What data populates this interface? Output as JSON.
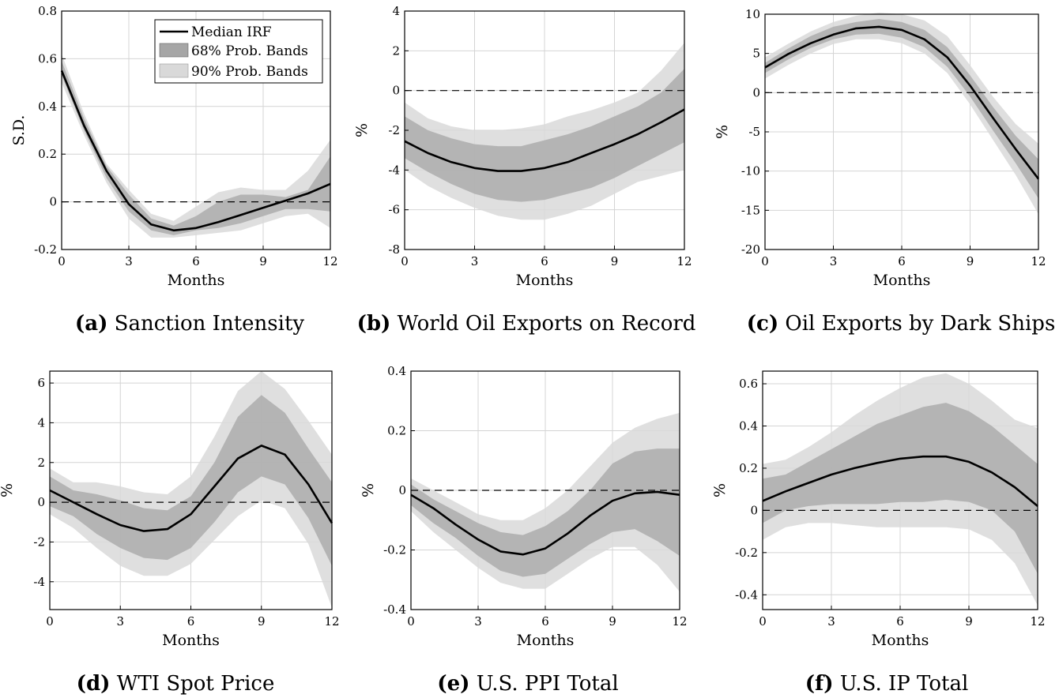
{
  "legend": {
    "median": "Median IRF",
    "band68": "68% Prob. Bands",
    "band90": "90% Prob. Bands"
  },
  "colors": {
    "median": "#000000",
    "band68": "#a6a6a6",
    "band90": "#d9d9d9",
    "grid": "#d4d4d4",
    "zero_line": "#000000"
  },
  "chart_data": [
    {
      "type": "line",
      "caption_letter": "(a)",
      "caption_title": "Sanction Intensity",
      "xlabel": "Months",
      "ylabel": "S.D.",
      "xlim": [
        0,
        12
      ],
      "ylim": [
        -0.2,
        0.8
      ],
      "xticks": [
        0,
        3,
        6,
        9,
        12
      ],
      "xtick_labels": [
        "0",
        "3",
        "6",
        "9",
        "12"
      ],
      "yticks": [
        -0.2,
        0,
        0.2,
        0.4,
        0.6,
        0.8
      ],
      "ytick_labels": [
        "-0.2",
        "0",
        "0.2",
        "0.4",
        "0.6",
        "0.8"
      ],
      "grid": true,
      "legend_position": "top-right",
      "x": [
        0,
        1,
        2,
        3,
        4,
        5,
        6,
        7,
        8,
        9,
        10,
        11,
        12
      ],
      "series": [
        {
          "name": "90% Prob. Bands",
          "lower": [
            0.5,
            0.28,
            0.08,
            -0.07,
            -0.15,
            -0.15,
            -0.14,
            -0.13,
            -0.12,
            -0.09,
            -0.06,
            -0.05,
            -0.11
          ],
          "upper": [
            0.62,
            0.37,
            0.16,
            0.05,
            -0.05,
            -0.08,
            -0.02,
            0.04,
            0.06,
            0.05,
            0.05,
            0.13,
            0.26
          ]
        },
        {
          "name": "68% Prob. Bands",
          "lower": [
            0.53,
            0.3,
            0.1,
            -0.04,
            -0.12,
            -0.14,
            -0.12,
            -0.11,
            -0.09,
            -0.06,
            -0.03,
            -0.03,
            -0.04
          ],
          "upper": [
            0.59,
            0.35,
            0.15,
            0.03,
            -0.07,
            -0.1,
            -0.06,
            0.0,
            0.03,
            0.03,
            0.02,
            0.05,
            0.19
          ]
        },
        {
          "name": "Median IRF",
          "values": [
            0.55,
            0.32,
            0.13,
            -0.01,
            -0.095,
            -0.12,
            -0.11,
            -0.085,
            -0.055,
            -0.025,
            0.005,
            0.035,
            0.075
          ]
        }
      ]
    },
    {
      "type": "line",
      "caption_letter": "(b)",
      "caption_title": "World Oil Exports on Record",
      "xlabel": "Months",
      "ylabel": "%",
      "xlim": [
        0,
        12
      ],
      "ylim": [
        -8,
        4
      ],
      "xticks": [
        0,
        3,
        6,
        9,
        12
      ],
      "xtick_labels": [
        "0",
        "3",
        "6",
        "9",
        "12"
      ],
      "yticks": [
        -8,
        -6,
        -4,
        -2,
        0,
        2,
        4
      ],
      "ytick_labels": [
        "-8",
        "-6",
        "-4",
        "-2",
        "0",
        "2",
        "4"
      ],
      "grid": true,
      "x": [
        0,
        1,
        2,
        3,
        4,
        5,
        6,
        7,
        8,
        9,
        10,
        11,
        12
      ],
      "series": [
        {
          "name": "90% Prob. Bands",
          "lower": [
            -4.0,
            -4.8,
            -5.4,
            -5.9,
            -6.3,
            -6.5,
            -6.5,
            -6.2,
            -5.8,
            -5.2,
            -4.6,
            -4.3,
            -4.0
          ],
          "upper": [
            -0.6,
            -1.4,
            -1.8,
            -2.0,
            -2.0,
            -1.9,
            -1.7,
            -1.3,
            -1.0,
            -0.6,
            -0.1,
            1.0,
            2.4
          ]
        },
        {
          "name": "68% Prob. Bands",
          "lower": [
            -3.4,
            -4.1,
            -4.7,
            -5.2,
            -5.5,
            -5.6,
            -5.5,
            -5.2,
            -4.9,
            -4.4,
            -3.8,
            -3.2,
            -2.6
          ],
          "upper": [
            -1.3,
            -2.0,
            -2.4,
            -2.7,
            -2.8,
            -2.8,
            -2.5,
            -2.2,
            -1.8,
            -1.3,
            -0.8,
            -0.1,
            1.1
          ]
        },
        {
          "name": "Median IRF",
          "values": [
            -2.55,
            -3.15,
            -3.6,
            -3.9,
            -4.05,
            -4.05,
            -3.9,
            -3.6,
            -3.15,
            -2.7,
            -2.2,
            -1.6,
            -0.95
          ]
        }
      ]
    },
    {
      "type": "line",
      "caption_letter": "(c)",
      "caption_title": "Oil Exports by Dark Ships",
      "xlabel": "Months",
      "ylabel": "%",
      "xlim": [
        0,
        12
      ],
      "ylim": [
        -20,
        10
      ],
      "xticks": [
        0,
        3,
        6,
        9,
        12
      ],
      "xtick_labels": [
        "0",
        "3",
        "6",
        "9",
        "12"
      ],
      "yticks": [
        -20,
        -15,
        -10,
        -5,
        0,
        5,
        10
      ],
      "ytick_labels": [
        "-20",
        "-15",
        "-10",
        "-5",
        "0",
        "5",
        "10"
      ],
      "grid": true,
      "x": [
        0,
        1,
        2,
        3,
        4,
        5,
        6,
        7,
        8,
        9,
        10,
        11,
        12
      ],
      "series": [
        {
          "name": "90% Prob. Bands",
          "lower": [
            1.8,
            3.5,
            5.0,
            6.2,
            6.8,
            6.8,
            6.3,
            5.0,
            2.5,
            -1.5,
            -6.0,
            -10.5,
            -15.5
          ],
          "upper": [
            4.5,
            6.2,
            7.8,
            9.0,
            9.8,
            10.2,
            10.0,
            9.2,
            7.2,
            3.5,
            -0.5,
            -4.0,
            -6.5
          ]
        },
        {
          "name": "68% Prob. Bands",
          "lower": [
            2.5,
            4.2,
            5.7,
            6.8,
            7.4,
            7.5,
            7.0,
            5.8,
            3.3,
            -0.5,
            -4.8,
            -9.0,
            -13.5
          ],
          "upper": [
            3.8,
            5.6,
            7.2,
            8.4,
            9.0,
            9.4,
            9.0,
            8.0,
            5.8,
            2.2,
            -1.8,
            -5.5,
            -8.5
          ]
        },
        {
          "name": "Median IRF",
          "values": [
            3.2,
            4.9,
            6.3,
            7.4,
            8.2,
            8.4,
            8.0,
            6.8,
            4.5,
            0.9,
            -3.2,
            -7.2,
            -11.0
          ]
        }
      ]
    },
    {
      "type": "line",
      "caption_letter": "(d)",
      "caption_title": "WTI Spot Price",
      "xlabel": "Months",
      "ylabel": "%",
      "xlim": [
        0,
        12
      ],
      "ylim": [
        -5.4,
        6.6
      ],
      "xticks": [
        0,
        3,
        6,
        9,
        12
      ],
      "xtick_labels": [
        "0",
        "3",
        "6",
        "9",
        "12"
      ],
      "yticks": [
        -4,
        -2,
        0,
        2,
        4,
        6
      ],
      "ytick_labels": [
        "-4",
        "-2",
        "0",
        "2",
        "4",
        "6"
      ],
      "grid": true,
      "x": [
        0,
        1,
        2,
        3,
        4,
        5,
        6,
        7,
        8,
        9,
        10,
        11,
        12
      ],
      "series": [
        {
          "name": "90% Prob. Bands",
          "lower": [
            -0.6,
            -1.3,
            -2.3,
            -3.2,
            -3.7,
            -3.7,
            -3.1,
            -1.9,
            -0.7,
            0.1,
            -0.3,
            -2.1,
            -5.3
          ],
          "upper": [
            1.7,
            1.0,
            1.0,
            0.8,
            0.5,
            0.4,
            1.3,
            3.3,
            5.6,
            6.6,
            5.7,
            4.1,
            2.4
          ]
        },
        {
          "name": "68% Prob. Bands",
          "lower": [
            -0.2,
            -0.7,
            -1.6,
            -2.3,
            -2.8,
            -2.9,
            -2.3,
            -1.0,
            0.5,
            1.3,
            0.9,
            -0.8,
            -3.2
          ],
          "upper": [
            1.3,
            0.6,
            0.4,
            0.1,
            -0.3,
            -0.4,
            0.3,
            2.0,
            4.3,
            5.4,
            4.5,
            2.7,
            1.0
          ]
        },
        {
          "name": "Median IRF",
          "values": [
            0.6,
            0.0,
            -0.6,
            -1.15,
            -1.45,
            -1.35,
            -0.6,
            0.8,
            2.2,
            2.85,
            2.4,
            0.9,
            -1.05
          ]
        }
      ]
    },
    {
      "type": "line",
      "caption_letter": "(e)",
      "caption_title": "U.S. PPI Total",
      "xlabel": "Months",
      "ylabel": "%",
      "xlim": [
        0,
        12
      ],
      "ylim": [
        -0.4,
        0.4
      ],
      "xticks": [
        0,
        3,
        6,
        9,
        12
      ],
      "xtick_labels": [
        "0",
        "3",
        "6",
        "9",
        "12"
      ],
      "yticks": [
        -0.4,
        -0.2,
        0,
        0.2,
        0.4
      ],
      "ytick_labels": [
        "-0.4",
        "-0.2",
        "0",
        "0.2",
        "0.4"
      ],
      "grid": true,
      "x": [
        0,
        1,
        2,
        3,
        4,
        5,
        6,
        7,
        8,
        9,
        10,
        11,
        12
      ],
      "series": [
        {
          "name": "90% Prob. Bands",
          "lower": [
            -0.07,
            -0.14,
            -0.2,
            -0.26,
            -0.31,
            -0.33,
            -0.33,
            -0.28,
            -0.23,
            -0.19,
            -0.19,
            -0.25,
            -0.34
          ],
          "upper": [
            0.04,
            0.0,
            -0.04,
            -0.08,
            -0.1,
            -0.1,
            -0.06,
            0.0,
            0.08,
            0.16,
            0.21,
            0.24,
            0.26
          ]
        },
        {
          "name": "68% Prob. Bands",
          "lower": [
            -0.05,
            -0.11,
            -0.16,
            -0.22,
            -0.27,
            -0.29,
            -0.28,
            -0.23,
            -0.18,
            -0.14,
            -0.13,
            -0.17,
            -0.22
          ],
          "upper": [
            0.02,
            -0.03,
            -0.07,
            -0.11,
            -0.14,
            -0.15,
            -0.12,
            -0.07,
            0.0,
            0.09,
            0.13,
            0.14,
            0.14
          ]
        },
        {
          "name": "Median IRF",
          "values": [
            -0.015,
            -0.06,
            -0.115,
            -0.165,
            -0.205,
            -0.215,
            -0.195,
            -0.145,
            -0.085,
            -0.035,
            -0.01,
            -0.005,
            -0.015
          ]
        }
      ]
    },
    {
      "type": "line",
      "caption_letter": "(f)",
      "caption_title": "U.S. IP Total",
      "xlabel": "Months",
      "ylabel": "%",
      "xlim": [
        0,
        12
      ],
      "ylim": [
        -0.47,
        0.66
      ],
      "xticks": [
        0,
        3,
        6,
        9,
        12
      ],
      "xtick_labels": [
        "0",
        "3",
        "6",
        "9",
        "12"
      ],
      "yticks": [
        -0.4,
        -0.2,
        0,
        0.2,
        0.4,
        0.6
      ],
      "ytick_labels": [
        "-0.4",
        "-0.2",
        "0",
        "0.2",
        "0.4",
        "0.6"
      ],
      "grid": true,
      "x": [
        0,
        1,
        2,
        3,
        4,
        5,
        6,
        7,
        8,
        9,
        10,
        11,
        12
      ],
      "series": [
        {
          "name": "90% Prob. Bands",
          "lower": [
            -0.14,
            -0.08,
            -0.06,
            -0.06,
            -0.07,
            -0.08,
            -0.08,
            -0.08,
            -0.08,
            -0.09,
            -0.14,
            -0.25,
            -0.45
          ],
          "upper": [
            0.22,
            0.24,
            0.3,
            0.37,
            0.45,
            0.52,
            0.58,
            0.63,
            0.65,
            0.6,
            0.52,
            0.43,
            0.39
          ]
        },
        {
          "name": "68% Prob. Bands",
          "lower": [
            -0.06,
            0.0,
            0.02,
            0.03,
            0.03,
            0.03,
            0.04,
            0.04,
            0.05,
            0.04,
            0.0,
            -0.1,
            -0.3
          ],
          "upper": [
            0.15,
            0.17,
            0.23,
            0.29,
            0.35,
            0.41,
            0.45,
            0.49,
            0.51,
            0.47,
            0.4,
            0.31,
            0.22
          ]
        },
        {
          "name": "Median IRF",
          "values": [
            0.045,
            0.09,
            0.13,
            0.17,
            0.2,
            0.225,
            0.245,
            0.255,
            0.255,
            0.23,
            0.18,
            0.11,
            0.02
          ]
        }
      ]
    }
  ]
}
